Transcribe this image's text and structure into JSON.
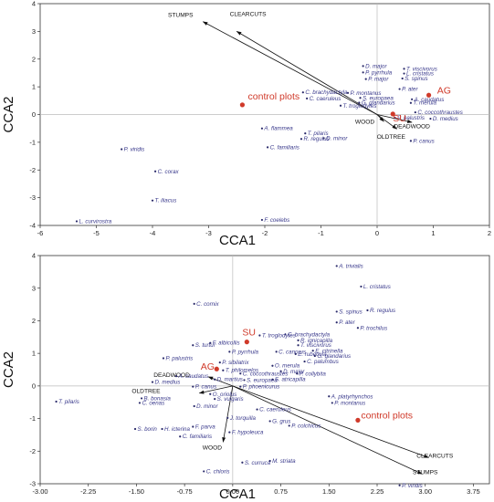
{
  "chart_data": [
    {
      "type": "scatter",
      "title": "",
      "xlabel": "CCA1",
      "ylabel": "CCA2",
      "xlim": [
        -6,
        2
      ],
      "ylim": [
        -4,
        4
      ],
      "xticks": [
        "-6",
        "-5",
        "-4",
        "-3",
        "-2",
        "-1",
        "0",
        "1",
        "2"
      ],
      "yticks": [
        "-4",
        "-3",
        "-2",
        "-1",
        "0",
        "1",
        "2",
        "3",
        "4"
      ],
      "grid": false,
      "zero_lines": true,
      "env_vectors": [
        {
          "label": "STUMPS",
          "x": -3.1,
          "y": 3.35,
          "lx": -3.5,
          "ly": 3.52
        },
        {
          "label": "CLEARCUTS",
          "x": -2.5,
          "y": 3.0,
          "lx": -2.3,
          "ly": 3.55
        },
        {
          "label": "WOOD",
          "x": 0.12,
          "y": -0.25,
          "lx": -0.22,
          "ly": -0.33
        },
        {
          "label": "DEADWOOD",
          "x": 0.62,
          "y": -0.28,
          "lx": 0.62,
          "ly": -0.5
        },
        {
          "label": "OLDTREE",
          "x": 0.35,
          "y": -0.52,
          "lx": 0.25,
          "ly": -0.88
        }
      ],
      "groups": [
        {
          "label": "control plots",
          "x": -2.4,
          "y": 0.35,
          "lx": -2.3,
          "ly": 0.55
        },
        {
          "label": "AG",
          "x": 0.92,
          "y": 0.7,
          "lx": 1.07,
          "ly": 0.75
        },
        {
          "label": "SU",
          "x": 0.28,
          "y": 0.02,
          "lx": 0.28,
          "ly": -0.25
        }
      ],
      "species": [
        {
          "name": "D. major",
          "x": -0.25,
          "y": 1.75
        },
        {
          "name": "T. viscivorus",
          "x": 0.48,
          "y": 1.65
        },
        {
          "name": "L. cristatus",
          "x": 0.48,
          "y": 1.48
        },
        {
          "name": "P. pyrrhula",
          "x": -0.25,
          "y": 1.52
        },
        {
          "name": "P. major",
          "x": -0.2,
          "y": 1.28
        },
        {
          "name": "S. spinus",
          "x": 0.45,
          "y": 1.3
        },
        {
          "name": "P. ater",
          "x": 0.4,
          "y": 0.92
        },
        {
          "name": "C. brachydactyla",
          "x": -1.32,
          "y": 0.8
        },
        {
          "name": "P. montanus",
          "x": -0.52,
          "y": 0.78
        },
        {
          "name": "A. caudatus",
          "x": 0.62,
          "y": 0.55
        },
        {
          "name": "C. caeruleus",
          "x": -1.25,
          "y": 0.58
        },
        {
          "name": "S. europaea",
          "x": -0.3,
          "y": 0.6
        },
        {
          "name": "G. glandarius",
          "x": -0.32,
          "y": 0.43
        },
        {
          "name": "T. merula",
          "x": 0.6,
          "y": 0.42
        },
        {
          "name": "T. troglodytes",
          "x": -0.65,
          "y": 0.32
        },
        {
          "name": "C. coccothraustes",
          "x": 0.68,
          "y": 0.08
        },
        {
          "name": "P. palustris",
          "x": 0.32,
          "y": -0.12
        },
        {
          "name": "D. medius",
          "x": 0.95,
          "y": -0.15
        },
        {
          "name": "P. canus",
          "x": 0.6,
          "y": -0.95
        },
        {
          "name": "A. flammea",
          "x": -2.05,
          "y": -0.5
        },
        {
          "name": "T. pilaris",
          "x": -1.28,
          "y": -0.68
        },
        {
          "name": "R. regulus",
          "x": -1.35,
          "y": -0.88
        },
        {
          "name": "D. minor",
          "x": -0.95,
          "y": -0.85
        },
        {
          "name": "C. familiaris",
          "x": -1.95,
          "y": -1.18
        },
        {
          "name": "P. viridis",
          "x": -4.55,
          "y": -1.25
        },
        {
          "name": "C. corax",
          "x": -3.95,
          "y": -2.05
        },
        {
          "name": "T. iliacus",
          "x": -4.0,
          "y": -3.1
        },
        {
          "name": "L. curvirostra",
          "x": -5.35,
          "y": -3.85
        },
        {
          "name": "F. coelebs",
          "x": -2.05,
          "y": -3.8
        }
      ]
    },
    {
      "type": "scatter",
      "title": "",
      "xlabel": "CCA1",
      "ylabel": "CCA2",
      "xlim": [
        -3.0,
        4.0
      ],
      "ylim": [
        -3,
        4
      ],
      "xticks": [
        "-3.00",
        "-2.25",
        "-1.50",
        "-0.75",
        "0.00",
        "0.75",
        "1.50",
        "2.25",
        "3.00",
        "3.75"
      ],
      "yticks": [
        "-3",
        "-2",
        "-1",
        "0",
        "1",
        "2",
        "3",
        "4"
      ],
      "grid": false,
      "zero_lines": true,
      "env_vectors": [
        {
          "label": "CLEARCUTS",
          "x": 3.05,
          "y": -2.2,
          "lx": 3.15,
          "ly": -2.2
        },
        {
          "label": "STUMPS",
          "x": 2.95,
          "y": -2.7,
          "lx": 3.0,
          "ly": -2.7
        },
        {
          "label": "DEADWOOD",
          "x": -0.38,
          "y": 0.28,
          "lx": -0.95,
          "ly": 0.28
        },
        {
          "label": "OLDTREE",
          "x": -0.52,
          "y": -0.22,
          "lx": -1.35,
          "ly": -0.22
        },
        {
          "label": "WOOD",
          "x": -0.15,
          "y": -1.72,
          "lx": -0.32,
          "ly": -1.95
        }
      ],
      "groups": [
        {
          "label": "SU",
          "x": 0.22,
          "y": 1.35,
          "lx": 0.15,
          "ly": 1.55
        },
        {
          "label": "AG",
          "x": -0.25,
          "y": 0.52,
          "lx": -0.5,
          "ly": 0.5
        },
        {
          "label": "control plots",
          "x": 1.95,
          "y": -1.05,
          "lx": 2.0,
          "ly": -1.0
        }
      ],
      "species": [
        {
          "name": "A. trivialis",
          "x": 1.62,
          "y": 3.68
        },
        {
          "name": "L. cristatus",
          "x": 2.0,
          "y": 3.05
        },
        {
          "name": "C. cornix",
          "x": -0.6,
          "y": 2.52
        },
        {
          "name": "R. regulus",
          "x": 2.1,
          "y": 2.32
        },
        {
          "name": "S. spinus",
          "x": 1.62,
          "y": 2.28
        },
        {
          "name": "P. ater",
          "x": 1.62,
          "y": 1.95
        },
        {
          "name": "P. trochilus",
          "x": 1.95,
          "y": 1.78
        },
        {
          "name": "C. brachydactyla",
          "x": 0.82,
          "y": 1.58
        },
        {
          "name": "T. troglodytes",
          "x": 0.42,
          "y": 1.55
        },
        {
          "name": "R. ignicapilla",
          "x": 1.02,
          "y": 1.4
        },
        {
          "name": "S. turtur",
          "x": -0.62,
          "y": 1.25
        },
        {
          "name": "F. albicollis",
          "x": -0.35,
          "y": 1.32
        },
        {
          "name": "P. pyrrhula",
          "x": -0.05,
          "y": 1.05
        },
        {
          "name": "C. canorus",
          "x": 0.68,
          "y": 1.05
        },
        {
          "name": "T. viscivorus",
          "x": 1.02,
          "y": 1.25
        },
        {
          "name": "E. citrinella",
          "x": 1.25,
          "y": 1.08
        },
        {
          "name": "E. rubecula",
          "x": 0.98,
          "y": 0.98
        },
        {
          "name": "G. glandarius",
          "x": 1.28,
          "y": 0.92
        },
        {
          "name": "P. palustris",
          "x": -1.08,
          "y": 0.85
        },
        {
          "name": "P. sibilatrix",
          "x": -0.2,
          "y": 0.72
        },
        {
          "name": "T. philomelos",
          "x": -0.15,
          "y": 0.48
        },
        {
          "name": "C. palumbus",
          "x": 1.12,
          "y": 0.75
        },
        {
          "name": "O. merula",
          "x": 0.62,
          "y": 0.62
        },
        {
          "name": "A. caudatus",
          "x": -0.88,
          "y": 0.3
        },
        {
          "name": "C. coccothraustes",
          "x": 0.12,
          "y": 0.38
        },
        {
          "name": "D. major",
          "x": 0.75,
          "y": 0.45
        },
        {
          "name": "P. collybita",
          "x": 1.0,
          "y": 0.38
        },
        {
          "name": "D. medius",
          "x": -1.25,
          "y": 0.12
        },
        {
          "name": "D. martius",
          "x": -0.28,
          "y": 0.2
        },
        {
          "name": "S. europaea",
          "x": 0.18,
          "y": 0.18
        },
        {
          "name": "S. atricapilla",
          "x": 0.62,
          "y": 0.2
        },
        {
          "name": "P. canus",
          "x": -0.62,
          "y": -0.02
        },
        {
          "name": "O. oriolus",
          "x": -0.35,
          "y": -0.25
        },
        {
          "name": "S. vulgaris",
          "x": -0.28,
          "y": -0.4
        },
        {
          "name": "P. phoenicurus",
          "x": 0.12,
          "y": -0.02
        },
        {
          "name": "A. platyrhynchos",
          "x": 1.5,
          "y": -0.32
        },
        {
          "name": "P. montanus",
          "x": 1.55,
          "y": -0.52
        },
        {
          "name": "B. bonasia",
          "x": -1.42,
          "y": -0.38
        },
        {
          "name": "C. oenas",
          "x": -1.45,
          "y": -0.52
        },
        {
          "name": "T. pilaris",
          "x": -2.75,
          "y": -0.48
        },
        {
          "name": "D. minor",
          "x": -0.6,
          "y": -0.62
        },
        {
          "name": "C. caeruleus",
          "x": 0.38,
          "y": -0.72
        },
        {
          "name": "J. torquilla",
          "x": -0.08,
          "y": -0.98
        },
        {
          "name": "G. grus",
          "x": 0.58,
          "y": -1.08
        },
        {
          "name": "P. colchicus",
          "x": 0.88,
          "y": -1.22
        },
        {
          "name": "S. borin",
          "x": -1.52,
          "y": -1.32
        },
        {
          "name": "H. icterina",
          "x": -1.1,
          "y": -1.32
        },
        {
          "name": "F. parva",
          "x": -0.62,
          "y": -1.25
        },
        {
          "name": "F. hypoleuca",
          "x": -0.05,
          "y": -1.42
        },
        {
          "name": "C. familiaris",
          "x": -0.82,
          "y": -1.55
        },
        {
          "name": "S. curruca",
          "x": 0.15,
          "y": -2.35
        },
        {
          "name": "M. striata",
          "x": 0.58,
          "y": -2.3
        },
        {
          "name": "C. chloris",
          "x": -0.45,
          "y": -2.62
        },
        {
          "name": "P. viridis",
          "x": 2.6,
          "y": -3.05
        }
      ]
    }
  ]
}
